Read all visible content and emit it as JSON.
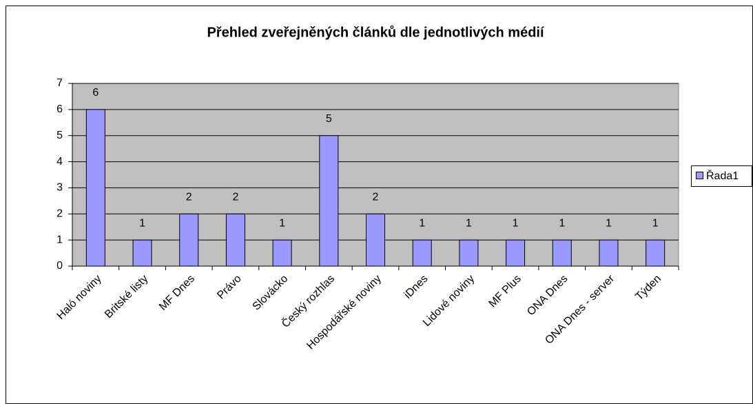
{
  "chart_data": {
    "type": "bar",
    "title": "Přehled zveřejněných článků dle jednotlivých médií",
    "categories": [
      "Haló noviny",
      "Britské listy",
      "MF Dnes",
      "Právo",
      "Slovácko",
      "Český rozhlas",
      "Hospodářské noviny",
      "iDnes",
      "Lidové noviny",
      "MF Plus",
      "ONA Dnes",
      "ONA Dnes - server",
      "Týden"
    ],
    "series": [
      {
        "name": "Řada1",
        "color": "#9999ff",
        "values": [
          6,
          1,
          2,
          2,
          1,
          5,
          2,
          1,
          1,
          1,
          1,
          1,
          1
        ]
      }
    ],
    "ylim": [
      0,
      7
    ],
    "yticks": [
      0,
      1,
      2,
      3,
      4,
      5,
      6,
      7
    ],
    "grid": true,
    "legend": "right"
  }
}
